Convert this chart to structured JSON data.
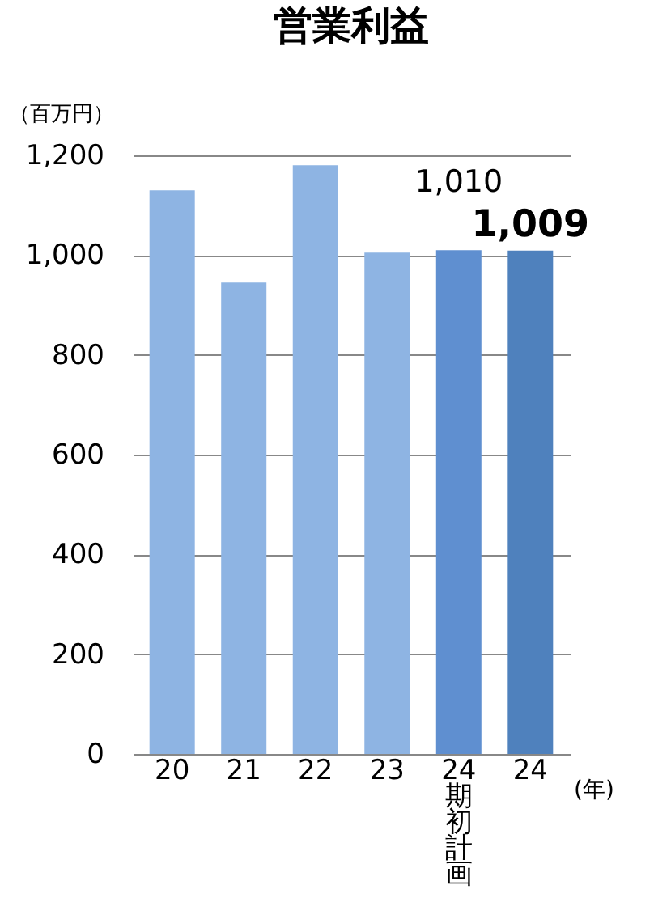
{
  "chart_data": {
    "type": "bar",
    "title": "営業利益",
    "ylabel": "（百万円）",
    "xlabel": "(年)",
    "categories": [
      "20",
      "21",
      "22",
      "23",
      "24 期初計画",
      "24"
    ],
    "values": [
      1130,
      945,
      1180,
      1005,
      1010,
      1009
    ],
    "colors": [
      "#8eb4e3",
      "#8eb4e3",
      "#8eb4e3",
      "#8eb4e3",
      "#5f8fd0",
      "#4f81bd"
    ],
    "value_labels": [
      null,
      null,
      null,
      null,
      "1,010",
      "1,009"
    ],
    "ylim": [
      0,
      1200
    ],
    "yticks": [
      0,
      200,
      400,
      600,
      800,
      {
        "value": 1000,
        "label": "1,000"
      },
      {
        "value": 1200,
        "label": "1,200"
      }
    ],
    "grid": "y"
  }
}
